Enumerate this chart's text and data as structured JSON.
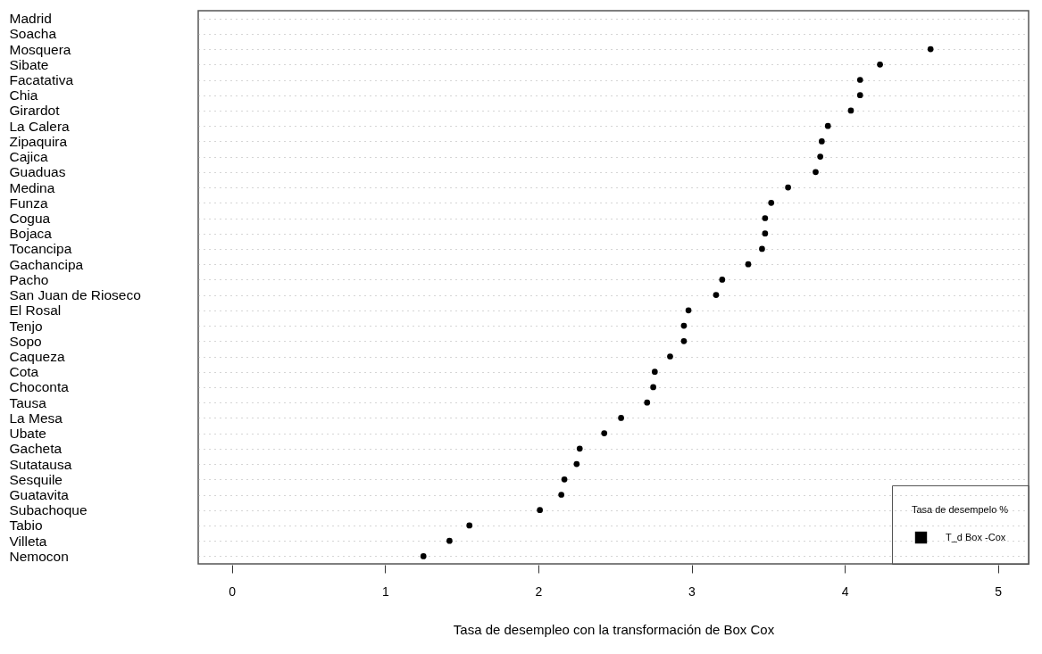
{
  "chart_data": {
    "type": "scatter",
    "xlabel": "Tasa de desempleo con la transformación de Box Cox",
    "legend_title": "Tasa de desempelo %",
    "categories": [
      "Madrid",
      "Soacha",
      "Mosquera",
      "Sibate",
      "Facatativa",
      "Chia",
      "Girardot",
      "La Calera",
      "Zipaquira",
      "Cajica",
      "Guaduas",
      "Medina",
      "Funza",
      "Cogua",
      "Bojaca",
      "Tocancipa",
      "Gachancipa",
      "Pacho",
      "San Juan de Rioseco",
      "El Rosal",
      "Tenjo",
      "Sopo",
      "Caqueza",
      "Cota",
      "Choconta",
      "Tausa",
      "La Mesa",
      "Ubate",
      "Gacheta",
      "Sutatausa",
      "Sesquile",
      "Guatavita",
      "Subachoque",
      "Tabio",
      "Villeta",
      "Nemocon"
    ],
    "series": [
      {
        "name": "T_d Box -Cox",
        "color": "#000000",
        "values": [
          null,
          null,
          4.56,
          4.23,
          4.1,
          4.1,
          4.04,
          3.89,
          3.85,
          3.84,
          3.81,
          3.63,
          3.52,
          3.48,
          3.48,
          3.46,
          3.37,
          3.2,
          3.16,
          2.98,
          2.95,
          2.95,
          2.86,
          2.76,
          2.75,
          2.71,
          2.54,
          2.43,
          2.27,
          2.25,
          2.17,
          2.15,
          2.01,
          1.55,
          1.42,
          1.25
        ]
      }
    ],
    "xlim": [
      -0.22,
      5.2
    ],
    "xticks": [
      0,
      1,
      2,
      3,
      4,
      5
    ],
    "orientation": "horizontal",
    "grid": "y",
    "legend": "bottom right",
    "marker": "circle"
  }
}
